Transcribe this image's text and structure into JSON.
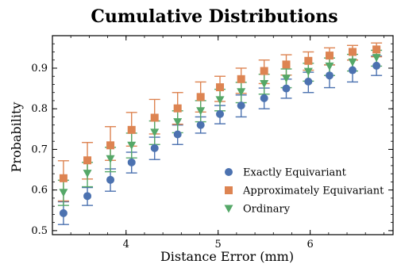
{
  "chart_data": {
    "type": "scatter",
    "title": "Cumulative Distributions",
    "xlabel": "Distance Error (mm)",
    "ylabel": "Probability",
    "xlim": [
      3.2,
      6.9
    ],
    "ylim": [
      0.49,
      0.98
    ],
    "x_ticks": [
      4,
      5,
      6
    ],
    "y_ticks": [
      0.5,
      0.6,
      0.7,
      0.8,
      0.9
    ],
    "x_tick_labels": [
      "4",
      "5",
      "6"
    ],
    "y_tick_labels": [
      "0.5",
      "0.6",
      "0.7",
      "0.8",
      "0.9"
    ],
    "legend_position": "lower-right",
    "grid": false,
    "x": [
      3.32,
      3.58,
      3.83,
      4.06,
      4.31,
      4.56,
      4.81,
      5.02,
      5.25,
      5.5,
      5.74,
      5.98,
      6.21,
      6.46,
      6.72
    ],
    "series": [
      {
        "name": "Exactly Equivariant",
        "marker": "circle",
        "color": "#4c72b0",
        "values": [
          0.543,
          0.585,
          0.625,
          0.668,
          0.703,
          0.737,
          0.76,
          0.787,
          0.808,
          0.826,
          0.85,
          0.867,
          0.882,
          0.895,
          0.906
        ],
        "err_low": [
          0.515,
          0.562,
          0.597,
          0.642,
          0.675,
          0.712,
          0.74,
          0.763,
          0.78,
          0.8,
          0.826,
          0.84,
          0.852,
          0.866,
          0.882
        ],
        "err_high": [
          0.571,
          0.606,
          0.652,
          0.693,
          0.73,
          0.76,
          0.78,
          0.808,
          0.834,
          0.851,
          0.873,
          0.89,
          0.908,
          0.92,
          0.93
        ]
      },
      {
        "name": "Approximately Equivariant",
        "marker": "square",
        "color": "#dd8452",
        "values": [
          0.629,
          0.673,
          0.71,
          0.748,
          0.778,
          0.801,
          0.829,
          0.853,
          0.873,
          0.893,
          0.909,
          0.918,
          0.931,
          0.94,
          0.946
        ],
        "err_low": [
          0.573,
          0.627,
          0.673,
          0.708,
          0.738,
          0.762,
          0.792,
          0.818,
          0.838,
          0.862,
          0.883,
          0.895,
          0.908,
          0.92,
          0.928
        ],
        "err_high": [
          0.672,
          0.717,
          0.756,
          0.791,
          0.823,
          0.84,
          0.866,
          0.88,
          0.9,
          0.92,
          0.933,
          0.94,
          0.95,
          0.956,
          0.962
        ]
      },
      {
        "name": "Ordinary",
        "marker": "triangle-down",
        "color": "#55a868",
        "values": [
          0.594,
          0.641,
          0.677,
          0.71,
          0.742,
          0.768,
          0.795,
          0.822,
          0.842,
          0.862,
          0.875,
          0.892,
          0.905,
          0.915,
          0.926
        ],
        "err_low": [
          0.562,
          0.608,
          0.645,
          0.679,
          0.712,
          0.741,
          0.768,
          0.795,
          0.815,
          0.836,
          0.852,
          0.868,
          0.882,
          0.893,
          0.905
        ],
        "err_high": [
          0.624,
          0.668,
          0.705,
          0.74,
          0.77,
          0.795,
          0.82,
          0.848,
          0.865,
          0.885,
          0.898,
          0.912,
          0.925,
          0.934,
          0.944
        ]
      }
    ]
  }
}
